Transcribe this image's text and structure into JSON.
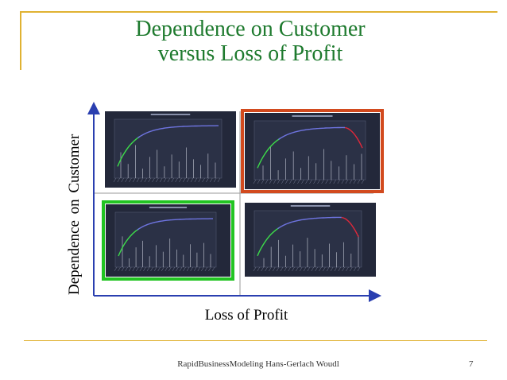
{
  "slide": {
    "title_line1": "Dependence on  Customer",
    "title_line2": "versus Loss of Profit",
    "y_axis_label": "Dependence on  Customer",
    "x_axis_label": "Loss of Profit",
    "footer": "RapidBusinessModeling Hans-Gerlach Woudl",
    "page_number": "7"
  },
  "colors": {
    "title": "#1e7a2e",
    "accent_rule": "#e0b232",
    "axis": "#2a3fb0",
    "highlight_high": "#d24a1e",
    "highlight_low": "#22c422",
    "chart_bg": "#23283a",
    "curve_rise": "#3ddc4a",
    "curve_plateau": "#6e74e0",
    "curve_drop": "#e0283a"
  },
  "quadrants": [
    {
      "position": "top-left",
      "highlight": "none",
      "curve_drop": false
    },
    {
      "position": "top-right",
      "highlight": "orange",
      "curve_drop": true
    },
    {
      "position": "bottom-left",
      "highlight": "green",
      "curve_drop": false
    },
    {
      "position": "bottom-right",
      "highlight": "none",
      "curve_drop": true
    }
  ]
}
